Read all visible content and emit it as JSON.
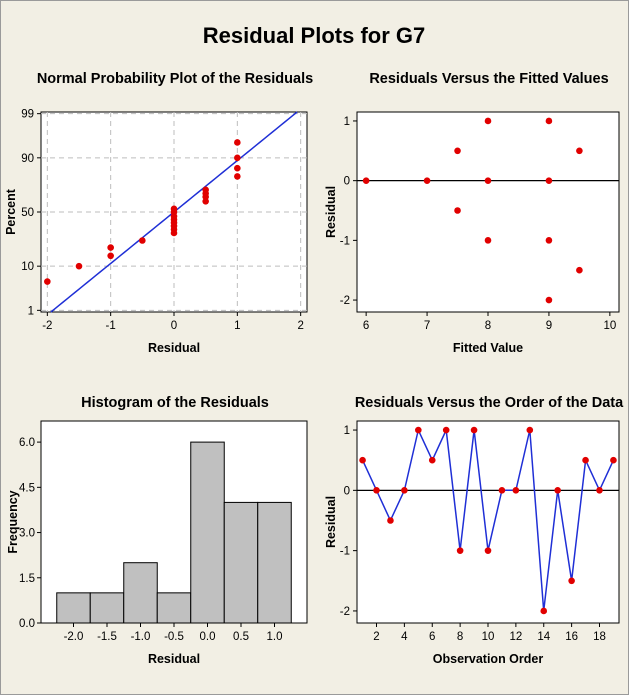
{
  "title": "Residual Plots for G7",
  "colors": {
    "point": "#e10000",
    "line": "#1f2fd6",
    "bar": "#c0c0c0",
    "background": "#f2efe4"
  },
  "chart_data": [
    {
      "type": "scatter",
      "id": "normal",
      "title": "Normal Probability Plot of the Residuals",
      "xlabel": "Residual",
      "ylabel": "Percent",
      "xlim": [
        -2.1,
        2.1
      ],
      "ylim": [
        0.9,
        99.1
      ],
      "y_scale": "normal-probability",
      "xticks": [
        "-2",
        "-1",
        "0",
        "1",
        "2"
      ],
      "yticks": [
        "1",
        "10",
        "50",
        "90",
        "99"
      ],
      "grid": true,
      "fit_line": true,
      "points": [
        {
          "x": -2,
          "y": 5
        },
        {
          "x": -1.5,
          "y": 10
        },
        {
          "x": -1,
          "y": 15
        },
        {
          "x": -1,
          "y": 20
        },
        {
          "x": -0.5,
          "y": 25
        },
        {
          "x": 0,
          "y": 31
        },
        {
          "x": 0,
          "y": 34
        },
        {
          "x": 0,
          "y": 37
        },
        {
          "x": 0,
          "y": 40
        },
        {
          "x": 0,
          "y": 43
        },
        {
          "x": 0,
          "y": 46
        },
        {
          "x": 0,
          "y": 50
        },
        {
          "x": 0,
          "y": 53
        },
        {
          "x": 0.5,
          "y": 60
        },
        {
          "x": 0.5,
          "y": 64
        },
        {
          "x": 0.5,
          "y": 67
        },
        {
          "x": 0.5,
          "y": 70
        },
        {
          "x": 1,
          "y": 80
        },
        {
          "x": 1,
          "y": 85
        },
        {
          "x": 1,
          "y": 90
        },
        {
          "x": 1,
          "y": 95
        }
      ]
    },
    {
      "type": "scatter",
      "id": "fitted",
      "title": "Residuals Versus the Fitted Values",
      "xlabel": "Fitted Value",
      "ylabel": "Residual",
      "xlim": [
        5.85,
        10.15
      ],
      "ylim": [
        -2.2,
        1.15
      ],
      "xticks": [
        "6",
        "7",
        "8",
        "9",
        "10"
      ],
      "yticks": [
        "1",
        "0",
        "-1",
        "-2"
      ],
      "reference_line": 0,
      "points": [
        {
          "x": 6,
          "y": 0
        },
        {
          "x": 7,
          "y": 0
        },
        {
          "x": 7.5,
          "y": 0.5
        },
        {
          "x": 7.5,
          "y": -0.5
        },
        {
          "x": 8,
          "y": 1
        },
        {
          "x": 8,
          "y": 0
        },
        {
          "x": 8,
          "y": -1
        },
        {
          "x": 9,
          "y": 1
        },
        {
          "x": 9,
          "y": 0
        },
        {
          "x": 9,
          "y": -1
        },
        {
          "x": 9,
          "y": -2
        },
        {
          "x": 9.5,
          "y": 0.5
        },
        {
          "x": 9.5,
          "y": -1.5
        }
      ]
    },
    {
      "type": "bar",
      "id": "histogram",
      "title": "Histogram of the Residuals",
      "xlabel": "Residual",
      "ylabel": "Frequency",
      "categories": [
        "-2.0",
        "-1.5",
        "-1.0",
        "-0.5",
        "0.0",
        "0.5",
        "1.0"
      ],
      "values": [
        1,
        1,
        2,
        1,
        6,
        4,
        4
      ],
      "ylim": [
        0,
        6.7
      ],
      "yticks": [
        "0.0",
        "1.5",
        "3.0",
        "4.5",
        "6.0"
      ]
    },
    {
      "type": "line",
      "id": "order",
      "title": "Residuals Versus the Order of the Data",
      "xlabel": "Observation Order",
      "ylabel": "Residual",
      "xlim": [
        0.6,
        19.4
      ],
      "ylim": [
        -2.2,
        1.15
      ],
      "xticks": [
        "2",
        "4",
        "6",
        "8",
        "10",
        "12",
        "14",
        "16",
        "18"
      ],
      "yticks": [
        "1",
        "0",
        "-1",
        "-2"
      ],
      "reference_line": 0,
      "x": [
        1,
        2,
        3,
        4,
        5,
        6,
        7,
        8,
        9,
        10,
        11,
        12,
        13,
        14,
        15,
        16,
        17,
        18,
        19
      ],
      "values": [
        0.5,
        0,
        -0.5,
        0,
        1,
        0.5,
        1,
        -1,
        1,
        -1,
        0,
        0,
        1,
        -2,
        0,
        -1.5,
        0.5,
        0,
        0.5
      ]
    }
  ]
}
